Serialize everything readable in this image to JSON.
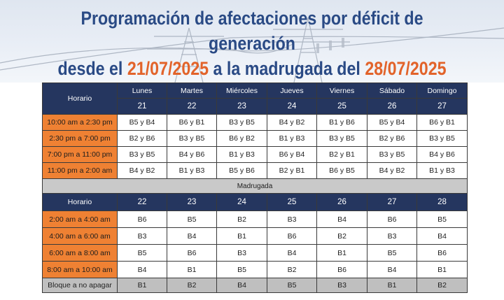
{
  "title": {
    "line1": "Programación de afectaciones por déficit de generación",
    "line2_prefix": "desde el ",
    "start_date": "21/07/2025",
    "line2_middle": " a la madrugada del ",
    "end_date": "28/07/2025"
  },
  "table": {
    "horario_label": "Horario",
    "days": [
      "Lunes",
      "Martes",
      "Miércoles",
      "Jueves",
      "Viernes",
      "Sábado",
      "Domingo"
    ],
    "dates": [
      "21",
      "22",
      "23",
      "24",
      "25",
      "26",
      "27"
    ],
    "rows": [
      {
        "slot": "10:00 am a 2:30 pm",
        "values": [
          "B5 y B4",
          "B6 y B1",
          "B3 y B5",
          "B4 y B2",
          "B1 y B6",
          "B5 y B4",
          "B6 y B1"
        ]
      },
      {
        "slot": "2:30 pm a 7:00 pm",
        "values": [
          "B2 y B6",
          "B3 y B5",
          "B6 y B2",
          "B1 y B3",
          "B3 y B5",
          "B2 y B6",
          "B3 y B5"
        ]
      },
      {
        "slot": "7:00 pm a 11:00 pm",
        "values": [
          "B3 y B5",
          "B4 y B6",
          "B1 y B3",
          "B6 y B4",
          "B2 y B1",
          "B3 y B5",
          "B4 y B6"
        ]
      },
      {
        "slot": "11:00 pm a 2:00 am",
        "values": [
          "B4 y B2",
          "B1 y B3",
          "B5 y B6",
          "B2 y B1",
          "B6 y B5",
          "B4 y B2",
          "B1 y B3"
        ]
      }
    ],
    "madrugada_label": "Madrugada",
    "madrugada_dates": [
      "22",
      "23",
      "24",
      "25",
      "26",
      "27",
      "28"
    ],
    "madrugada_rows": [
      {
        "slot": "2:00 am a 4:00 am",
        "values": [
          "B6",
          "B5",
          "B2",
          "B3",
          "B4",
          "B6",
          "B5"
        ]
      },
      {
        "slot": "4:00 am a 6:00 am",
        "values": [
          "B3",
          "B4",
          "B1",
          "B6",
          "B2",
          "B3",
          "B4"
        ]
      },
      {
        "slot": "6:00 am a 8:00 am",
        "values": [
          "B5",
          "B6",
          "B3",
          "B4",
          "B1",
          "B5",
          "B6"
        ]
      },
      {
        "slot": "8:00 am a 10:00 am",
        "values": [
          "B4",
          "B1",
          "B5",
          "B2",
          "B6",
          "B4",
          "B1"
        ]
      }
    ],
    "no_apagar": {
      "label": "Bloque a no apagar",
      "values": [
        "B1",
        "B2",
        "B4",
        "B5",
        "B3",
        "B1",
        "B2"
      ]
    }
  },
  "colors": {
    "title_blue": "#2a4a85",
    "title_orange": "#e2632a",
    "header_navy": "#25365f",
    "slot_orange": "#ef8133",
    "gray_row": "#bfbfbf"
  },
  "icons": {
    "banner_background": "power-tower-icon"
  }
}
